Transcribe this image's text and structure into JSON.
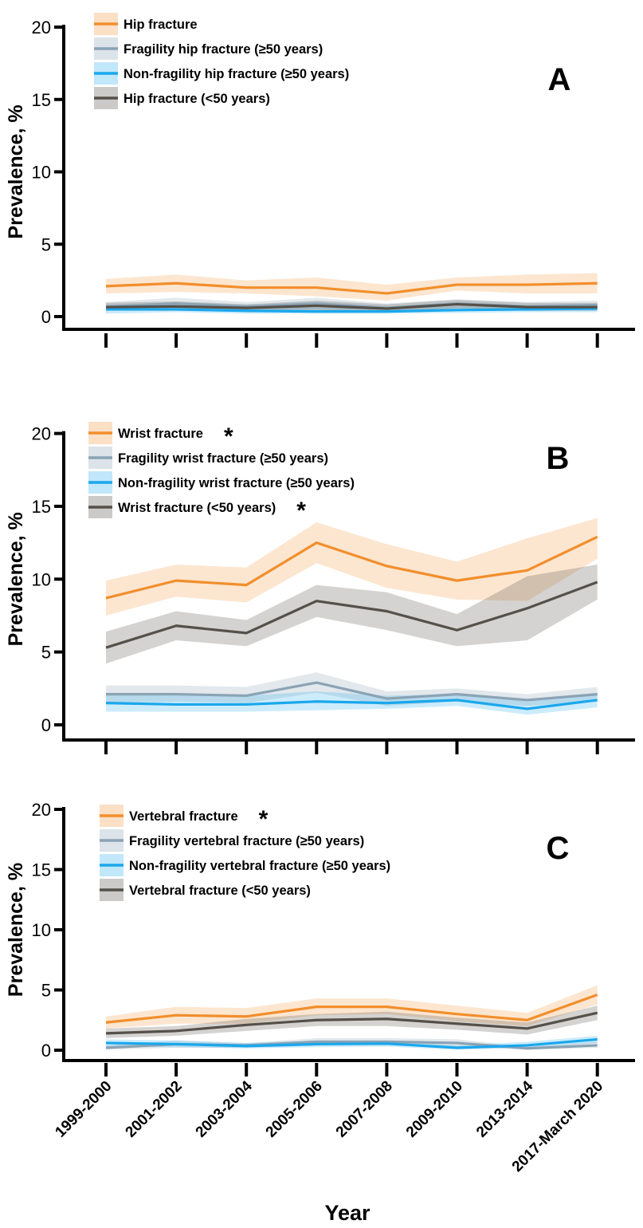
{
  "figure": {
    "xlabel": "Year",
    "categories": [
      "1999-2000",
      "2001-2002",
      "2003-2004",
      "2005-2006",
      "2007-2008",
      "2009-2010",
      "2013-2014",
      "2017-March 2020"
    ]
  },
  "chart_data": [
    {
      "type": "line",
      "panel_label": "A",
      "ylabel": "Prevalence, %",
      "ylim": [
        0,
        20
      ],
      "yticks": [
        "0",
        "5",
        "10",
        "15",
        "20"
      ],
      "grid": false,
      "legend_position": "top-left",
      "categories": [
        "1999-2000",
        "2001-2002",
        "2003-2004",
        "2005-2006",
        "2007-2008",
        "2009-2010",
        "2013-2014",
        "2017-March 2020"
      ],
      "series": [
        {
          "name": "Hip fracture",
          "star": "",
          "color": "#F28E2B",
          "values": [
            2.1,
            2.3,
            2.0,
            2.0,
            1.6,
            2.2,
            2.2,
            2.3
          ],
          "lower": [
            1.6,
            1.7,
            1.6,
            1.4,
            1.1,
            1.8,
            1.6,
            1.6
          ],
          "upper": [
            2.6,
            2.9,
            2.5,
            2.7,
            2.2,
            2.7,
            2.9,
            3.0
          ]
        },
        {
          "name": "Fragility hip fracture (≥50 years)",
          "star": "",
          "color": "#8AA3B5",
          "values": [
            0.7,
            0.9,
            0.7,
            0.9,
            0.6,
            0.9,
            0.7,
            0.8
          ],
          "lower": [
            0.4,
            0.6,
            0.4,
            0.5,
            0.3,
            0.6,
            0.4,
            0.5
          ],
          "upper": [
            1.0,
            1.3,
            1.0,
            1.3,
            0.9,
            1.2,
            1.0,
            1.1
          ]
        },
        {
          "name": "Non-fragility hip fracture (≥50 years)",
          "star": "",
          "color": "#1AA7EC",
          "values": [
            0.5,
            0.5,
            0.4,
            0.35,
            0.35,
            0.45,
            0.5,
            0.55
          ],
          "lower": [
            0.2,
            0.3,
            0.2,
            0.2,
            0.2,
            0.25,
            0.3,
            0.3
          ],
          "upper": [
            0.8,
            0.8,
            0.7,
            0.6,
            0.6,
            0.7,
            0.7,
            0.8
          ]
        },
        {
          "name": "Hip fracture (<50 years)",
          "star": "",
          "color": "#555049",
          "values": [
            0.65,
            0.7,
            0.6,
            0.75,
            0.55,
            0.85,
            0.65,
            0.65
          ],
          "lower": [
            0.4,
            0.4,
            0.4,
            0.45,
            0.3,
            0.55,
            0.4,
            0.4
          ],
          "upper": [
            0.95,
            1.05,
            0.85,
            1.1,
            0.85,
            1.15,
            0.95,
            0.95
          ]
        }
      ]
    },
    {
      "type": "line",
      "panel_label": "B",
      "ylabel": "Prevalence, %",
      "ylim": [
        0,
        20
      ],
      "yticks": [
        "0",
        "5",
        "10",
        "15",
        "20"
      ],
      "grid": false,
      "legend_position": "top-left",
      "categories": [
        "1999-2000",
        "2001-2002",
        "2003-2004",
        "2005-2006",
        "2007-2008",
        "2009-2010",
        "2013-2014",
        "2017-March 2020"
      ],
      "series": [
        {
          "name": "Wrist fracture",
          "star": "*",
          "color": "#F28E2B",
          "values": [
            8.7,
            9.9,
            9.6,
            12.5,
            10.9,
            9.9,
            10.6,
            12.9
          ],
          "lower": [
            7.5,
            8.8,
            8.4,
            11.1,
            9.4,
            8.6,
            8.5,
            11.4
          ],
          "upper": [
            9.9,
            11.0,
            10.8,
            13.9,
            12.4,
            11.2,
            12.8,
            14.2
          ]
        },
        {
          "name": "Fragility wrist fracture (≥50 years)",
          "star": "",
          "color": "#8AA3B5",
          "values": [
            2.1,
            2.1,
            2.0,
            2.9,
            1.8,
            2.1,
            1.7,
            2.1
          ],
          "lower": [
            1.5,
            1.6,
            1.5,
            2.2,
            1.3,
            1.6,
            1.3,
            1.6
          ],
          "upper": [
            2.7,
            2.7,
            2.6,
            3.6,
            2.3,
            2.5,
            2.1,
            2.6
          ]
        },
        {
          "name": "Non-fragility wrist fracture (≥50 years)",
          "star": "",
          "color": "#1AA7EC",
          "values": [
            1.5,
            1.4,
            1.4,
            1.6,
            1.5,
            1.7,
            1.1,
            1.7
          ],
          "lower": [
            0.9,
            0.9,
            0.9,
            1.0,
            1.1,
            1.3,
            0.7,
            1.2
          ],
          "upper": [
            2.1,
            2.0,
            2.0,
            2.3,
            2.0,
            2.1,
            1.6,
            2.2
          ]
        },
        {
          "name": "Wrist fracture (<50 years)",
          "star": "*",
          "color": "#555049",
          "values": [
            5.3,
            6.8,
            6.3,
            8.5,
            7.8,
            6.5,
            8.0,
            9.8
          ],
          "lower": [
            4.2,
            5.8,
            5.4,
            7.4,
            6.5,
            5.4,
            5.8,
            8.6
          ],
          "upper": [
            6.4,
            7.8,
            7.2,
            9.6,
            9.1,
            7.6,
            10.2,
            11.0
          ]
        }
      ]
    },
    {
      "type": "line",
      "panel_label": "C",
      "ylabel": "Prevalence, %",
      "ylim": [
        0,
        20
      ],
      "yticks": [
        "0",
        "5",
        "10",
        "15",
        "20"
      ],
      "grid": false,
      "legend_position": "top-left",
      "categories": [
        "1999-2000",
        "2001-2002",
        "2003-2004",
        "2005-2006",
        "2007-2008",
        "2009-2010",
        "2013-2014",
        "2017-March 2020"
      ],
      "series": [
        {
          "name": "Vertebral fracture",
          "star": "*",
          "color": "#F28E2B",
          "values": [
            2.3,
            2.9,
            2.8,
            3.6,
            3.6,
            3.0,
            2.5,
            4.6
          ],
          "lower": [
            1.8,
            2.2,
            2.2,
            2.9,
            3.0,
            2.4,
            2.0,
            3.8
          ],
          "upper": [
            2.8,
            3.6,
            3.5,
            4.3,
            4.3,
            3.7,
            3.1,
            5.4
          ]
        },
        {
          "name": "Fragility vertebral fracture (≥50 years)",
          "star": "",
          "color": "#8AA3B5",
          "values": [
            0.2,
            0.5,
            0.4,
            0.7,
            0.7,
            0.6,
            0.15,
            0.4
          ],
          "lower": [
            0.05,
            0.2,
            0.2,
            0.4,
            0.4,
            0.3,
            0.05,
            0.2
          ],
          "upper": [
            0.4,
            0.8,
            0.6,
            1.0,
            1.0,
            0.9,
            0.3,
            0.7
          ]
        },
        {
          "name": "Non-fragility vertebral fracture (≥50 years)",
          "star": "",
          "color": "#1AA7EC",
          "values": [
            0.6,
            0.5,
            0.35,
            0.5,
            0.55,
            0.2,
            0.4,
            0.9
          ],
          "lower": [
            0.3,
            0.25,
            0.15,
            0.25,
            0.3,
            0.05,
            0.2,
            0.6
          ],
          "upper": [
            0.9,
            0.8,
            0.6,
            0.8,
            0.8,
            0.4,
            0.7,
            1.2
          ]
        },
        {
          "name": "Vertebral fracture (<50 years)",
          "star": "",
          "color": "#555049",
          "values": [
            1.4,
            1.6,
            2.1,
            2.5,
            2.6,
            2.2,
            1.8,
            3.1
          ],
          "lower": [
            1.0,
            1.2,
            1.6,
            2.0,
            2.0,
            1.7,
            1.3,
            2.5
          ],
          "upper": [
            1.8,
            2.0,
            2.6,
            3.0,
            3.2,
            2.7,
            2.3,
            3.7
          ]
        }
      ]
    }
  ]
}
